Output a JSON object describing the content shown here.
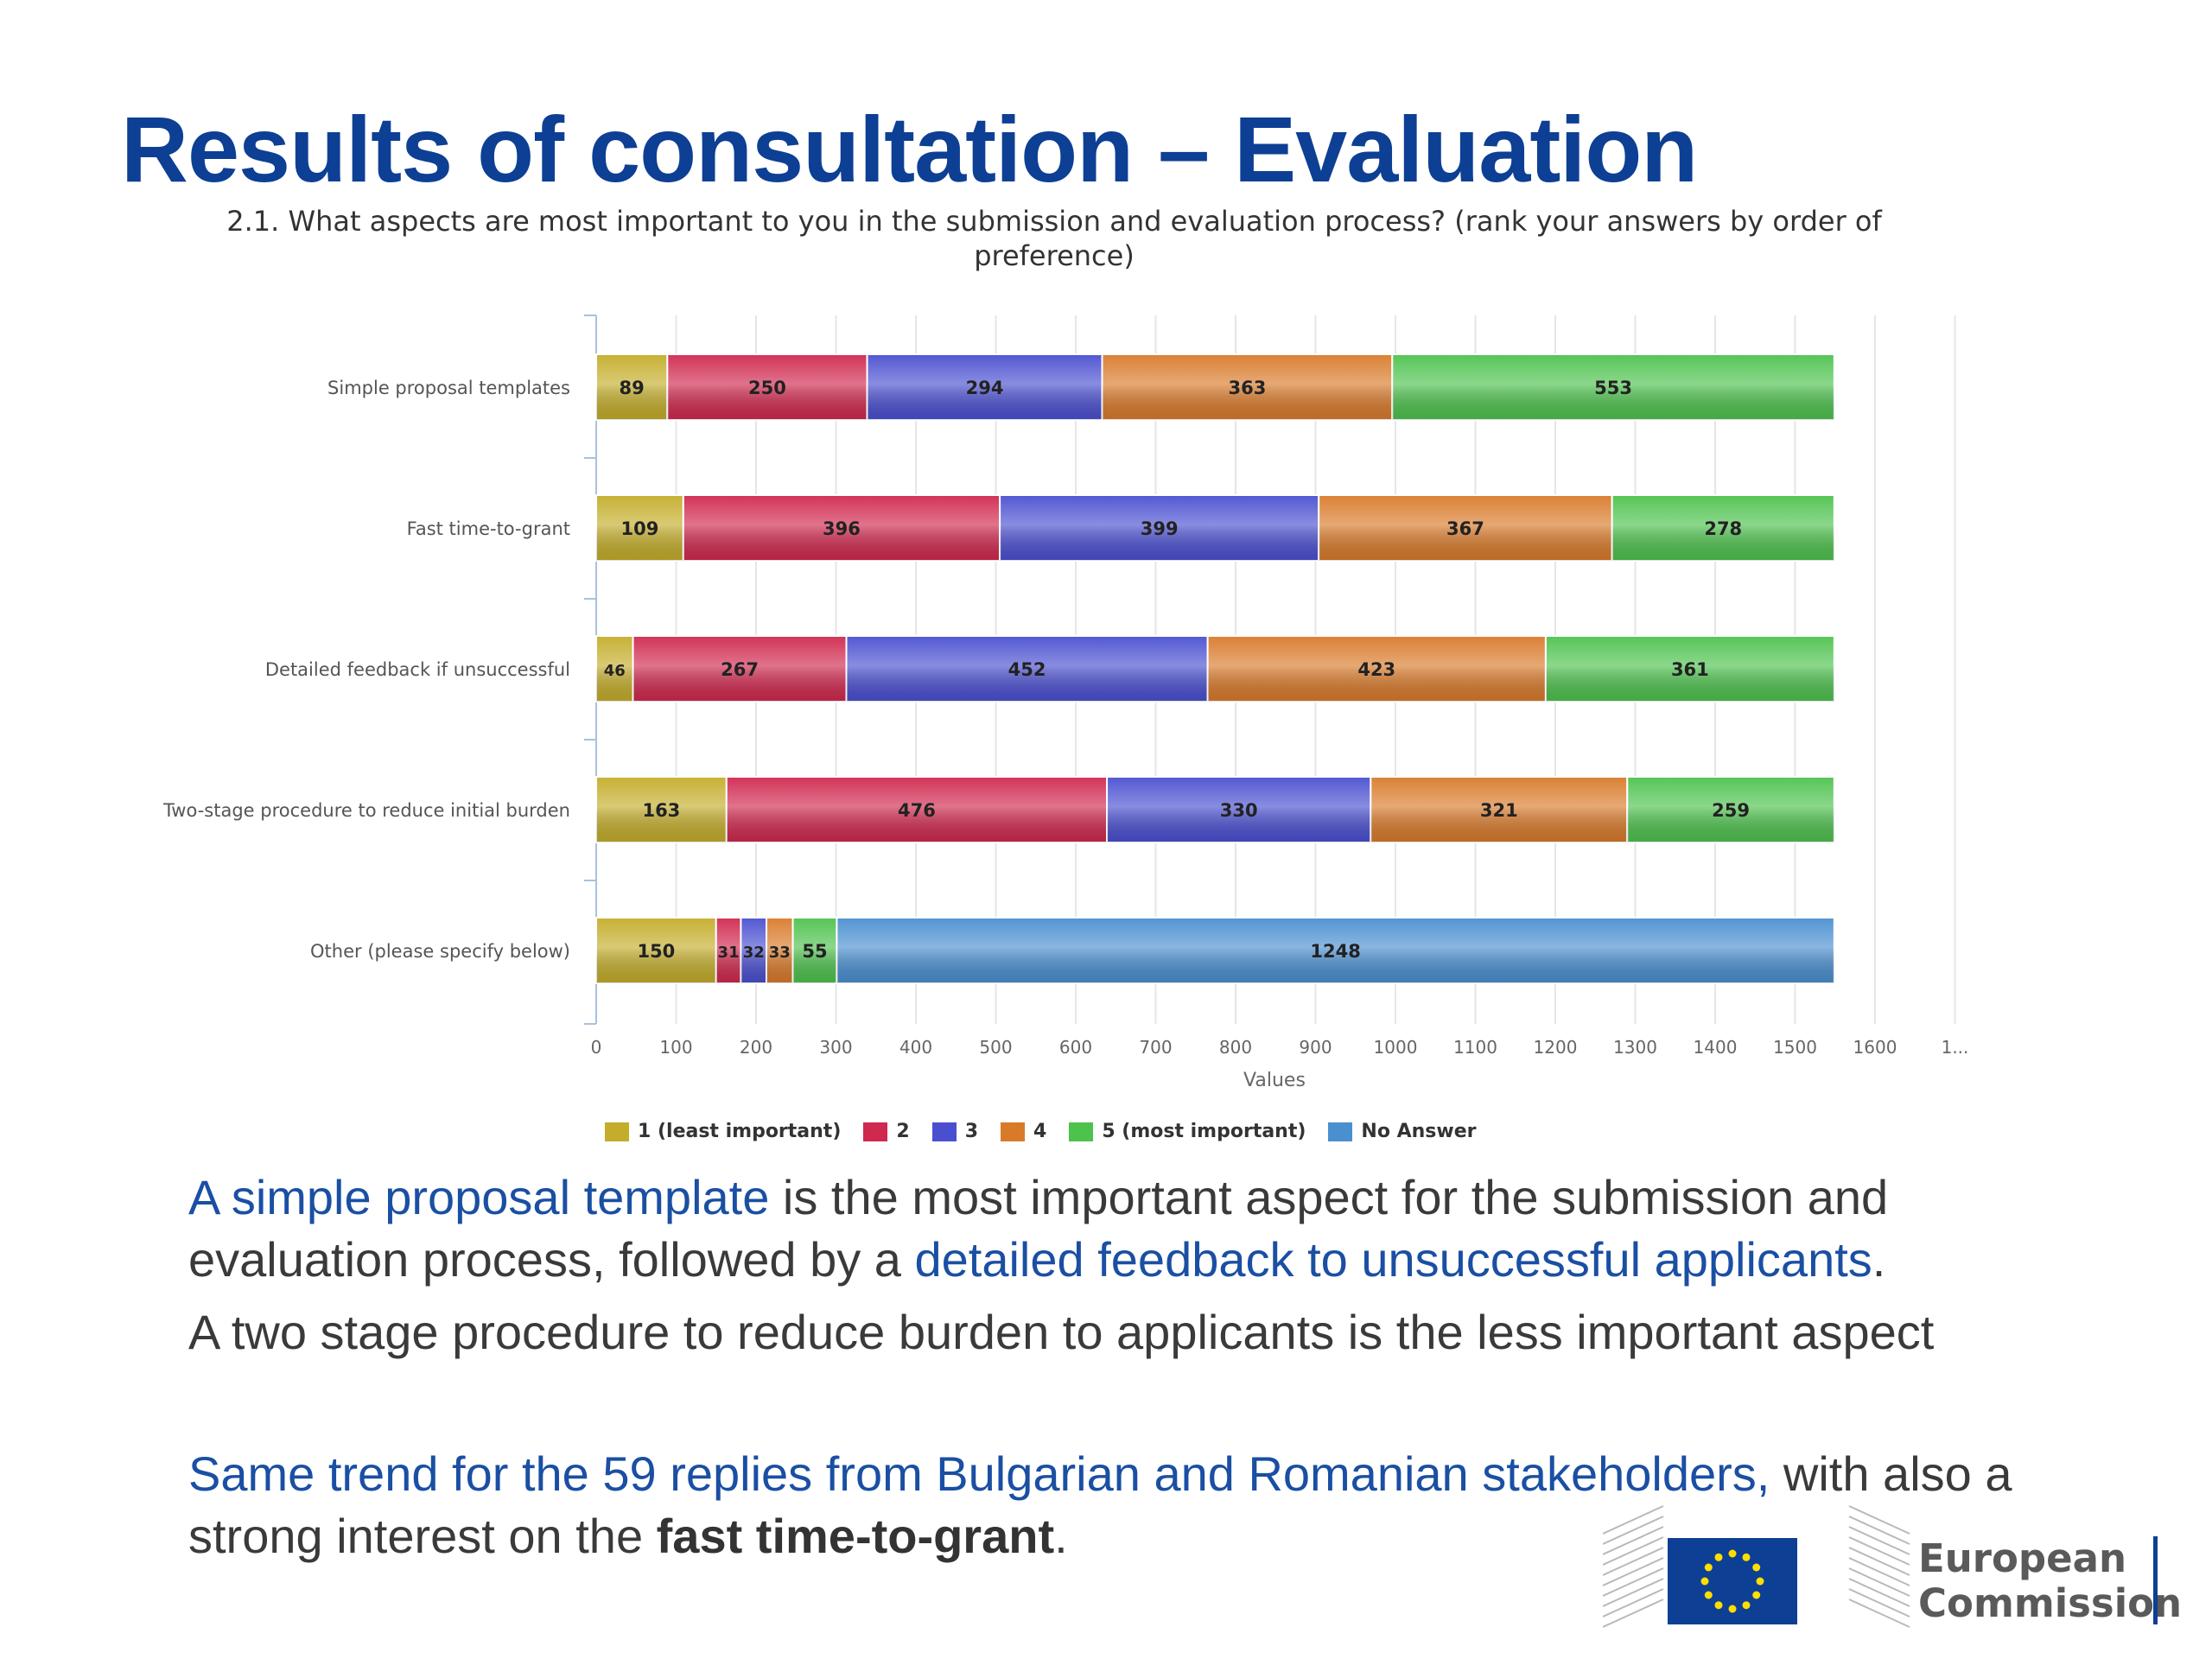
{
  "slide": {
    "title": "Results of consultation – Evaluation",
    "subtitle": "2.1. What aspects are most important to you in the submission and evaluation process? (rank your answers by order of preference)"
  },
  "colors": {
    "title": "#0d3f94",
    "highlight": "#1a4fa3",
    "series": [
      "#c4ad2a",
      "#d0284e",
      "#4a4fd0",
      "#d97a2a",
      "#4dc24d",
      "#4a8fd0"
    ]
  },
  "chart_data": {
    "type": "bar",
    "orientation": "horizontal",
    "stacked": true,
    "title": "2.1. What aspects are most important to you in the submission and evaluation process? (rank your answers by order of preference)",
    "categories": [
      "Simple proposal templates",
      "Fast time-to-grant",
      "Detailed feedback if unsuccessful",
      "Two-stage procedure to reduce initial burden",
      "Other (please specify below)"
    ],
    "series": [
      {
        "name": "1 (least important)",
        "values": [
          89,
          109,
          46,
          163,
          150
        ]
      },
      {
        "name": "2",
        "values": [
          250,
          396,
          267,
          476,
          31
        ]
      },
      {
        "name": "3",
        "values": [
          294,
          399,
          452,
          330,
          32
        ]
      },
      {
        "name": "4",
        "values": [
          363,
          367,
          423,
          321,
          33
        ]
      },
      {
        "name": "5 (most important)",
        "values": [
          553,
          278,
          361,
          259,
          55
        ]
      },
      {
        "name": "No Answer",
        "values": [
          0,
          0,
          0,
          0,
          1248
        ]
      }
    ],
    "xlabel": "Values",
    "ylabel": "",
    "xlim": [
      0,
      1700
    ],
    "ticks": [
      "0",
      "100",
      "200",
      "300",
      "400",
      "500",
      "600",
      "700",
      "800",
      "900",
      "1000",
      "1100",
      "1200",
      "1300",
      "1400",
      "1500",
      "1600",
      "1..."
    ],
    "grid": true,
    "legend_position": "bottom"
  },
  "text": {
    "p1_hl1": "A simple proposal template",
    "p1_t1": " is the most important aspect for the submission and evaluation process, followed by a ",
    "p1_hl2": "detailed feedback to unsuccessful applicants",
    "p1_t2": ".",
    "p2": "A two stage procedure to reduce burden to applicants is the less important aspect",
    "p3_hl": "Same trend for the 59 replies from Bulgarian and Romanian stakeholders,",
    "p3_t1": " with also a strong interest on the ",
    "p3_bold": "fast time-to-grant",
    "p3_t2": "."
  },
  "logo": {
    "line1": "European",
    "line2": "Commission"
  }
}
